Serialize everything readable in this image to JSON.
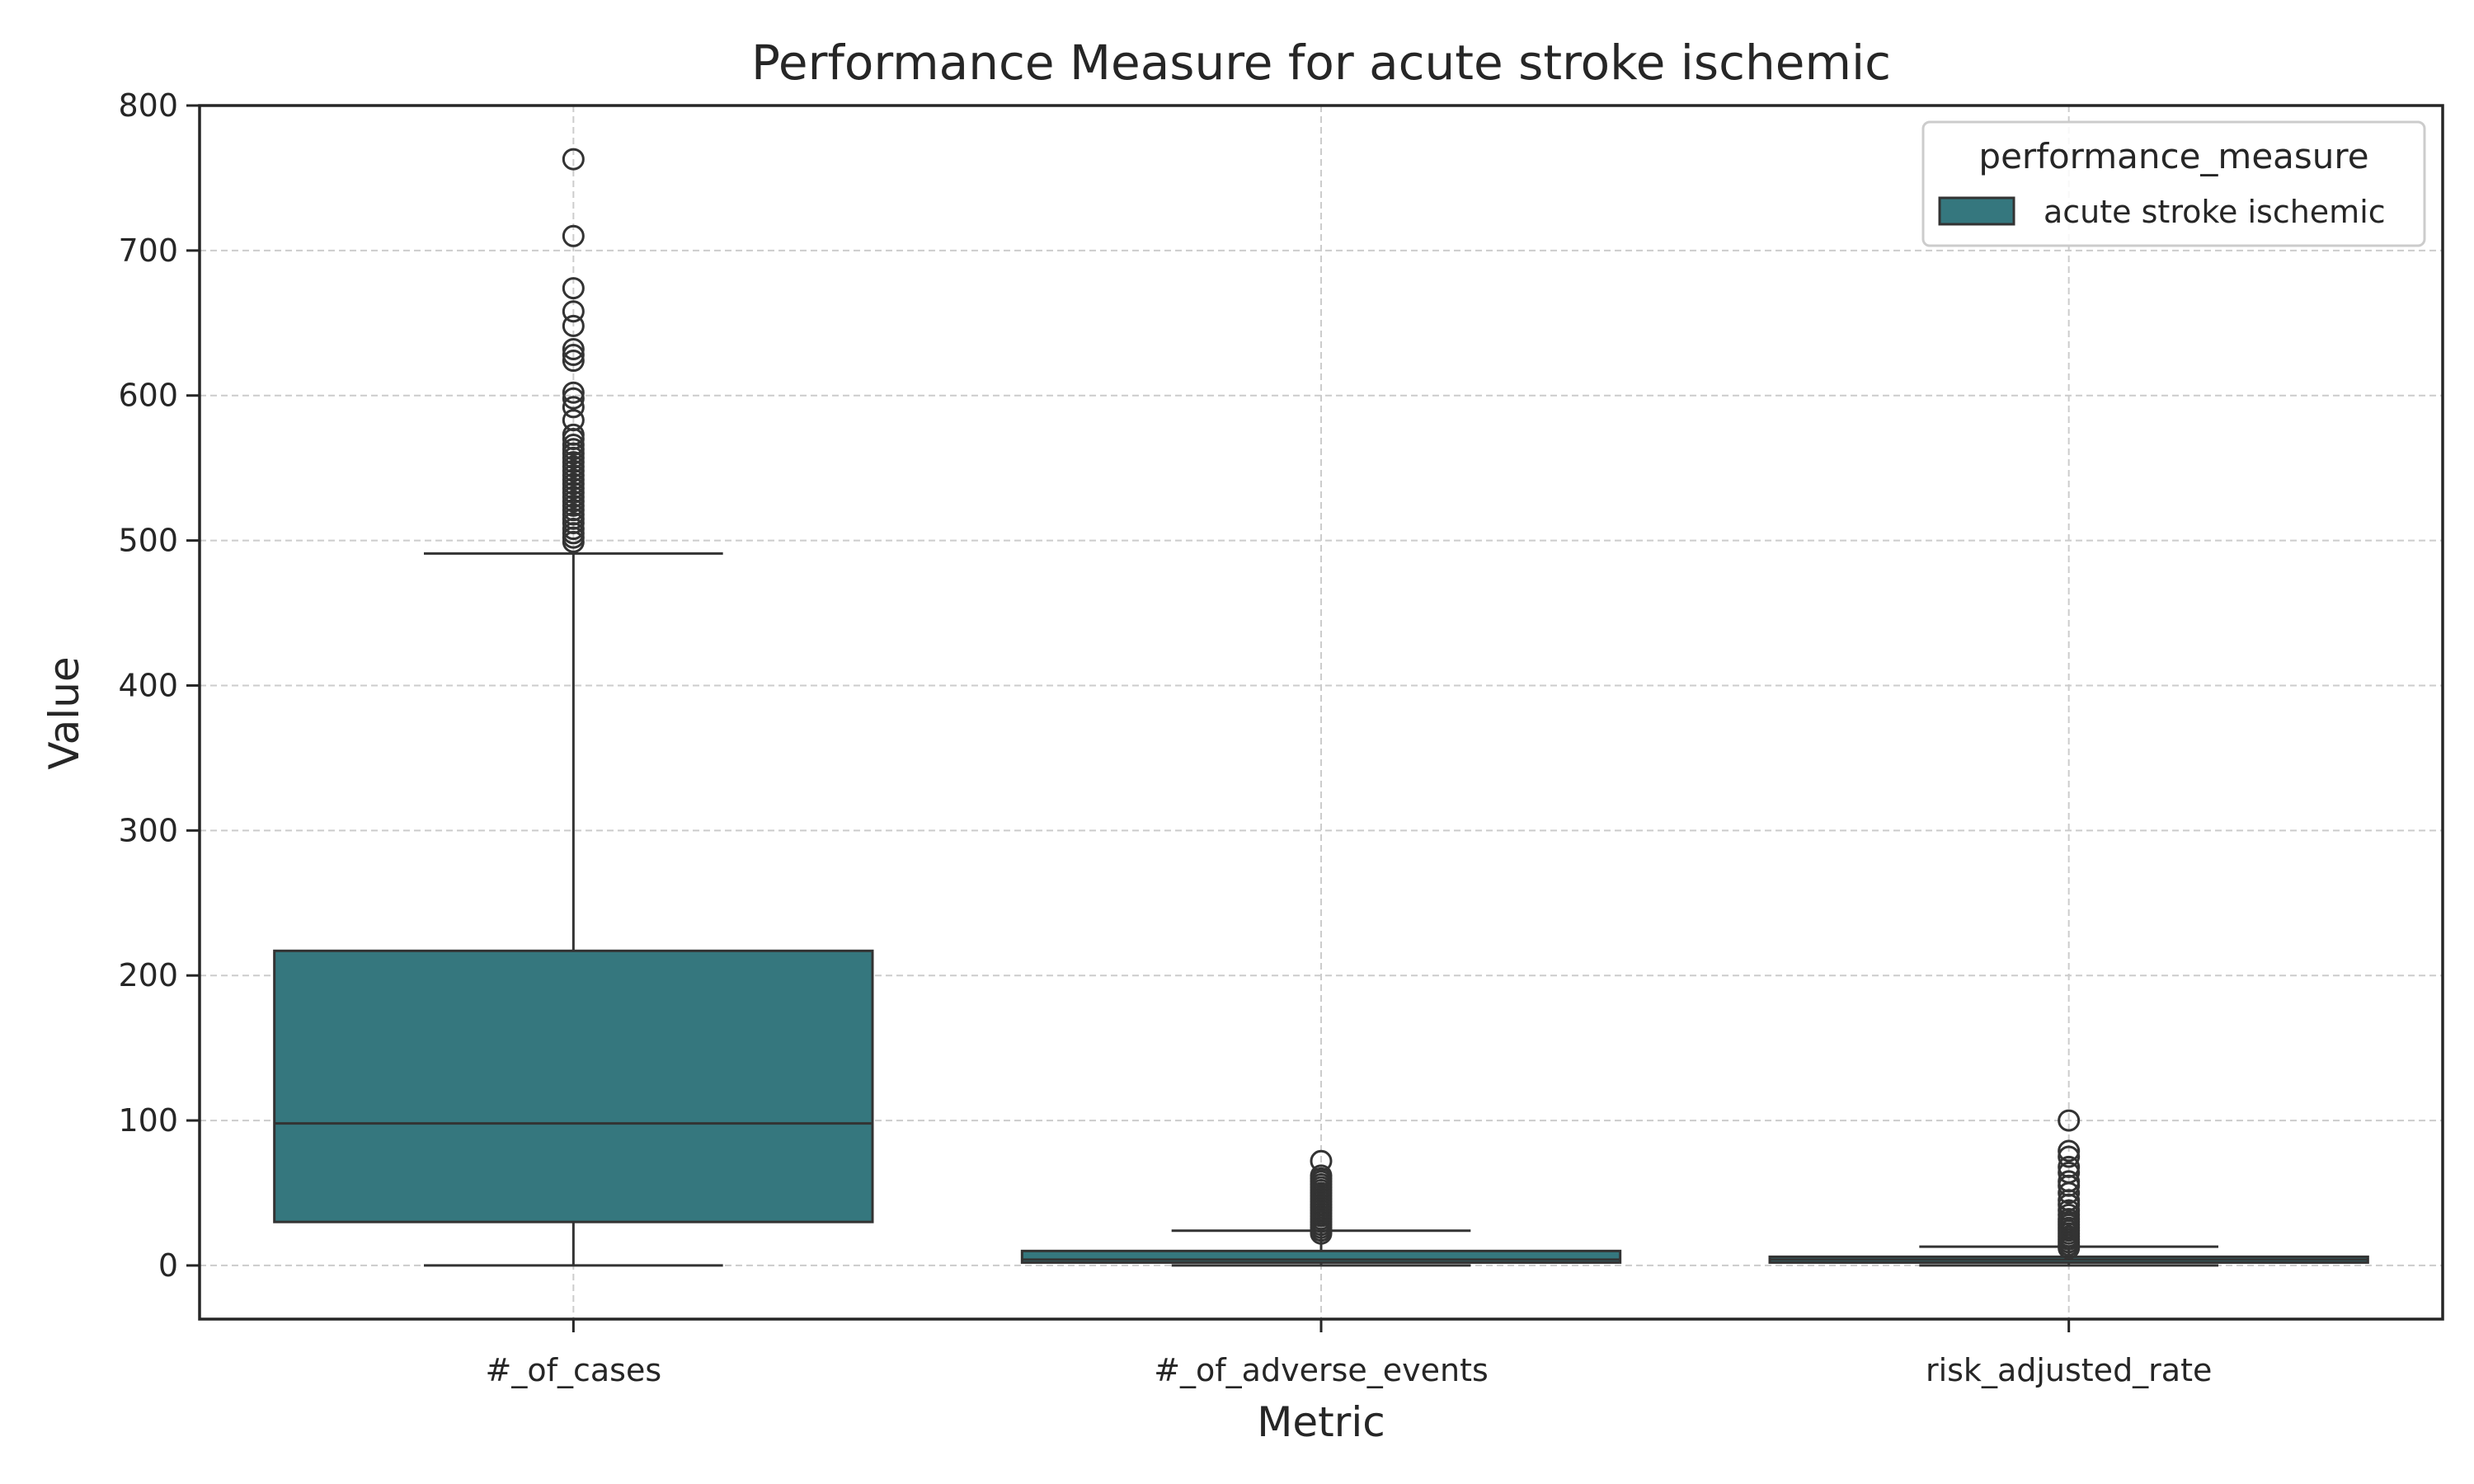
{
  "chart_data": {
    "type": "box",
    "title": "Performance Measure for acute stroke ischemic",
    "xlabel": "Metric",
    "ylabel": "Value",
    "categories": [
      "#_of_cases",
      "#_of_adverse_events",
      "risk_adjusted_rate"
    ],
    "ylim": [
      -37,
      800
    ],
    "yticks": [
      0,
      100,
      200,
      300,
      400,
      500,
      600,
      700,
      800
    ],
    "grid": true,
    "legend": {
      "title": "performance_measure",
      "position": "top-right",
      "entries": [
        "acute stroke ischemic"
      ]
    },
    "colors": {
      "box_fill": "#35777e",
      "line": "#333333",
      "grid": "#cccccc"
    },
    "series": [
      {
        "name": "acute stroke ischemic",
        "boxes": [
          {
            "category": "#_of_cases",
            "whisker_low": 0,
            "q1": 30,
            "median": 98,
            "q3": 217,
            "whisker_high": 491,
            "outliers": [
              499,
              502,
              505,
              508,
              512,
              515,
              518,
              521,
              524,
              527,
              530,
              533,
              536,
              539,
              542,
              545,
              548,
              551,
              554,
              557,
              560,
              563,
              566,
              570,
              573,
              583,
              592,
              598,
              602,
              624,
              628,
              632,
              648,
              658,
              674,
              710,
              763
            ]
          },
          {
            "category": "#_of_adverse_events",
            "whisker_low": 0,
            "q1": 2,
            "median": 4,
            "q3": 10,
            "whisker_high": 24,
            "outliers": [
              22,
              24,
              26,
              28,
              30,
              32,
              34,
              36,
              38,
              40,
              42,
              44,
              46,
              48,
              50,
              52,
              54,
              56,
              58,
              60,
              62,
              72
            ]
          },
          {
            "category": "risk_adjusted_rate",
            "whisker_low": 0,
            "q1": 2,
            "median": 4,
            "q3": 6,
            "whisker_high": 13,
            "outliers": [
              12,
              14,
              16,
              18,
              20,
              22,
              24,
              26,
              28,
              30,
              32,
              35,
              38,
              42,
              45,
              50,
              55,
              58,
              64,
              68,
              75,
              79,
              100
            ]
          }
        ]
      }
    ]
  }
}
